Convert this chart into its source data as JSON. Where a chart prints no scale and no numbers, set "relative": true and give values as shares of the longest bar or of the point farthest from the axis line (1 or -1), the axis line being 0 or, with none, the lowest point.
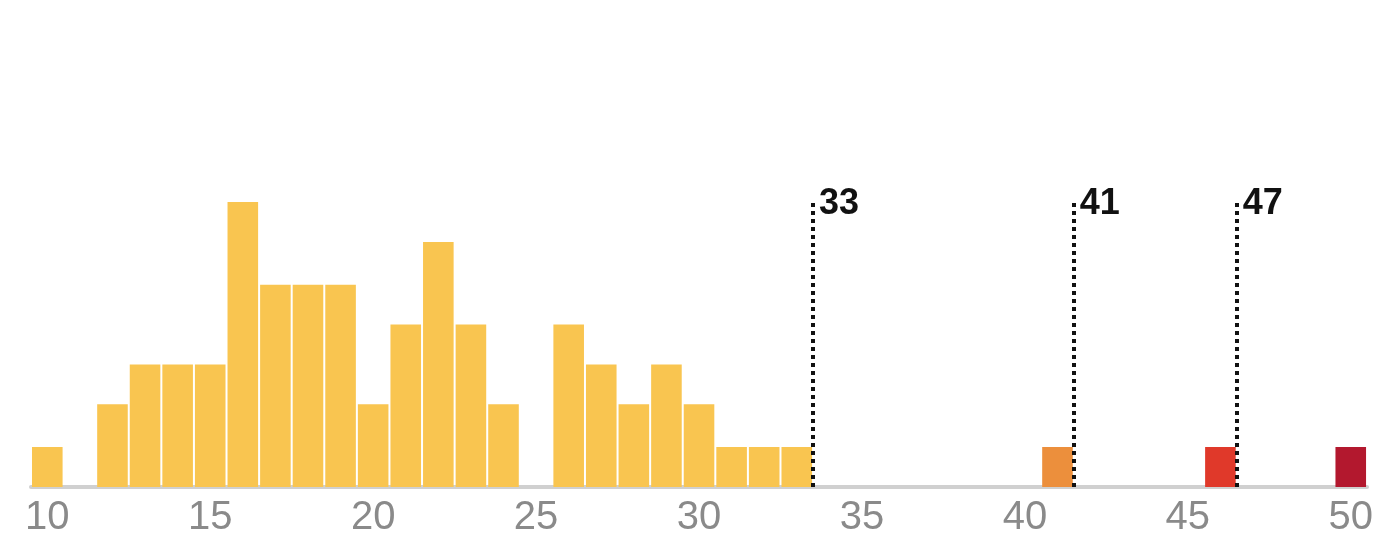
{
  "chart_data": {
    "type": "bar",
    "relative": true,
    "x": [
      10,
      12,
      13,
      14,
      15,
      16,
      17,
      18,
      19,
      20,
      21,
      22,
      23,
      24,
      26,
      27,
      28,
      29,
      30,
      31,
      32,
      33,
      41,
      46,
      50
    ],
    "values": [
      0.14,
      0.29,
      0.43,
      0.43,
      0.43,
      1,
      0.71,
      0.71,
      0.71,
      0.29,
      0.57,
      0.86,
      0.57,
      0.29,
      0.57,
      0.43,
      0.29,
      0.43,
      0.29,
      0.14,
      0.14,
      0.14,
      0.14,
      0.14,
      0.14
    ],
    "colors": [
      "#f9c550",
      "#f9c550",
      "#f9c550",
      "#f9c550",
      "#f9c550",
      "#f9c550",
      "#f9c550",
      "#f9c550",
      "#f9c550",
      "#f9c550",
      "#f9c550",
      "#f9c550",
      "#f9c550",
      "#f9c550",
      "#f9c550",
      "#f9c550",
      "#f9c550",
      "#f9c550",
      "#f9c550",
      "#f9c550",
      "#f9c550",
      "#f9c550",
      "#ec8f3c",
      "#e0392a",
      "#b3182e"
    ],
    "xlim": [
      9.5,
      50.5
    ],
    "xticks": [
      10,
      15,
      20,
      25,
      30,
      35,
      40,
      45,
      50
    ],
    "ref_lines": [
      {
        "axis": "x",
        "value": 33.5,
        "label": "33",
        "color": "#111111",
        "line_style": "dotted"
      },
      {
        "axis": "x",
        "value": 41.5,
        "label": "41",
        "color": "#111111",
        "line_style": "dotted"
      },
      {
        "axis": "x",
        "value": 46.5,
        "label": "47",
        "color": "#111111",
        "line_style": "dotted"
      }
    ],
    "grid": false
  }
}
